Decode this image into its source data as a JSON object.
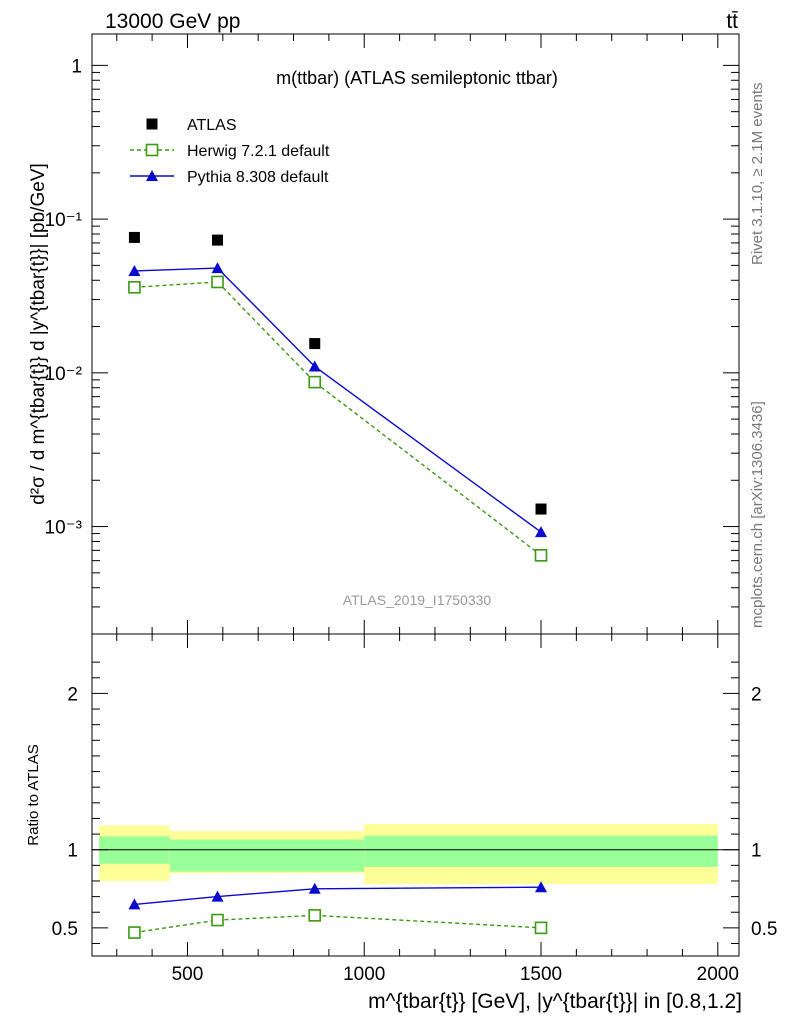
{
  "header": {
    "energy_label": "13000 GeV pp",
    "process_label": "tt̄"
  },
  "side_labels": {
    "rivet": "Rivet 3.1.10, ≥ 2.1M events",
    "mcplots": "mcplots.cern.ch [arXiv:1306.3436]"
  },
  "chart_data": [
    {
      "type": "scatter",
      "panel": "main",
      "title": "m(ttbar) (ATLAS semileptonic ttbar)",
      "watermark": "ATLAS_2019_I1750330",
      "ylabel": "d²σ / d m^{tbar{t}} d |y^{tbar{t}}| [pb/GeV]",
      "yscale": "log",
      "ylim": [
        0.0002,
        1.6
      ],
      "xlim": [
        230,
        2060
      ],
      "yticks": [
        {
          "value": 1,
          "label": "1"
        },
        {
          "value": 0.1,
          "label": "10⁻¹"
        },
        {
          "value": 0.01,
          "label": "10⁻²"
        },
        {
          "value": 0.001,
          "label": "10⁻³"
        }
      ],
      "legend_position": "top-left",
      "series": [
        {
          "name": "ATLAS",
          "marker": "filled-square",
          "color": "#000000",
          "x": [
            350,
            585,
            860,
            1500
          ],
          "y": [
            0.076,
            0.073,
            0.0155,
            0.0013
          ]
        },
        {
          "name": "Herwig 7.2.1 default",
          "marker": "open-square",
          "line": "dashed",
          "color": "#3a9a10",
          "x": [
            350,
            585,
            860,
            1500
          ],
          "y": [
            0.036,
            0.039,
            0.0087,
            0.00065
          ]
        },
        {
          "name": "Pythia 8.308 default",
          "marker": "filled-triangle",
          "line": "solid",
          "color": "#0a0acc",
          "x": [
            350,
            585,
            860,
            1500
          ],
          "y": [
            0.046,
            0.048,
            0.011,
            0.00092
          ]
        }
      ]
    },
    {
      "type": "line",
      "panel": "ratio",
      "ylabel": "Ratio to ATLAS",
      "xlabel": "m^{tbar{t}} [GeV], |y^{tbar{t}}| in [0.8,1.2]",
      "ylim": [
        0.32,
        2.38
      ],
      "xlim": [
        230,
        2060
      ],
      "xticks": [
        {
          "value": 500,
          "label": "500"
        },
        {
          "value": 1000,
          "label": "1000"
        },
        {
          "value": 1500,
          "label": "1500"
        },
        {
          "value": 2000,
          "label": "2000"
        }
      ],
      "yticks": [
        {
          "value": 0.5,
          "label": "0.5"
        },
        {
          "value": 1,
          "label": "1"
        },
        {
          "value": 2,
          "label": "2"
        }
      ],
      "uncertainty_bands": [
        {
          "x_low": 250,
          "x_high": 450,
          "stat_low": 0.91,
          "stat_high": 1.085,
          "total_low": 0.8,
          "total_high": 1.155
        },
        {
          "x_low": 450,
          "x_high": 1000,
          "stat_low": 0.86,
          "stat_high": 1.065,
          "total_low": 0.85,
          "total_high": 1.12
        },
        {
          "x_low": 1000,
          "x_high": 2000,
          "stat_low": 0.89,
          "stat_high": 1.09,
          "total_low": 0.78,
          "total_high": 1.165
        }
      ],
      "band_colors": {
        "stat": "#99ff99",
        "total": "#ffff99"
      },
      "series": [
        {
          "name": "Herwig 7.2.1 default",
          "marker": "open-square",
          "line": "dashed",
          "color": "#3a9a10",
          "x": [
            350,
            585,
            860,
            1500
          ],
          "y": [
            0.47,
            0.55,
            0.58,
            0.5
          ]
        },
        {
          "name": "Pythia 8.308 default",
          "marker": "filled-triangle",
          "line": "solid",
          "color": "#0a0acc",
          "x": [
            350,
            585,
            860,
            1500
          ],
          "y": [
            0.65,
            0.7,
            0.75,
            0.76
          ]
        }
      ]
    }
  ]
}
